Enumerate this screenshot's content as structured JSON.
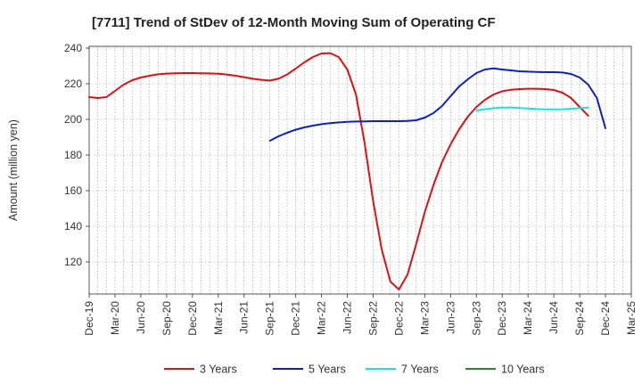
{
  "chart_data": {
    "type": "line",
    "title": "[7711]  Trend of StDev of 12-Month Moving Sum of Operating CF",
    "xlabel": "",
    "ylabel": "Amount (million yen)",
    "ylim": [
      102,
      241
    ],
    "yticks": [
      120,
      140,
      160,
      180,
      200,
      220,
      240
    ],
    "x_categories": [
      "Dec-19",
      "Mar-20",
      "Jun-20",
      "Sep-20",
      "Dec-20",
      "Mar-21",
      "Jun-21",
      "Sep-21",
      "Dec-21",
      "Mar-22",
      "Jun-22",
      "Sep-22",
      "Dec-22",
      "Mar-23",
      "Jun-23",
      "Sep-23",
      "Dec-23",
      "Mar-24",
      "Jun-24",
      "Sep-24",
      "Dec-24",
      "Mar-25"
    ],
    "x_start": "2019-12",
    "grid": true,
    "legend_position": "bottom",
    "series": [
      {
        "name": "3 Years",
        "color": "#dd1111",
        "start_index": 0,
        "values": [
          212.5,
          212,
          212.5,
          216,
          219.5,
          222,
          223.5,
          224.5,
          225.3,
          225.7,
          225.9,
          226,
          226,
          225.9,
          225.8,
          225.6,
          225.2,
          224.5,
          223.7,
          222.8,
          222.2,
          221.8,
          222.8,
          225.2,
          228.5,
          232,
          235,
          237,
          237.2,
          235,
          228,
          214,
          187,
          154,
          127,
          109,
          104.5,
          113,
          130,
          148,
          163,
          176,
          186,
          194.5,
          201.5,
          207,
          211,
          214,
          215.8,
          216.6,
          217,
          217.2,
          217.2,
          217,
          216.5,
          215,
          212,
          207,
          202
        ]
      },
      {
        "name": "5 Years",
        "color": "#0b1fc8",
        "start_index": 21,
        "values": [
          188,
          190.5,
          192.5,
          194.2,
          195.5,
          196.5,
          197.3,
          197.9,
          198.3,
          198.6,
          198.8,
          198.9,
          199,
          199,
          199,
          199,
          199.1,
          199.5,
          201,
          203.5,
          207.5,
          213,
          218.5,
          222.5,
          226,
          228,
          228.6,
          228,
          227.5,
          227,
          226.8,
          226.6,
          226.5,
          226.5,
          226.3,
          225.5,
          223.5,
          219.5,
          212,
          195
        ]
      },
      {
        "name": "7 Years",
        "color": "#17e3e3",
        "start_index": 45,
        "values": [
          205,
          205.7,
          206.3,
          206.6,
          206.6,
          206.4,
          206.1,
          205.8,
          205.6,
          205.6,
          205.7,
          206,
          206.3,
          206.6
        ]
      },
      {
        "name": "10 Years",
        "color": "#2a8a2a",
        "start_index": 0,
        "values": []
      }
    ]
  }
}
